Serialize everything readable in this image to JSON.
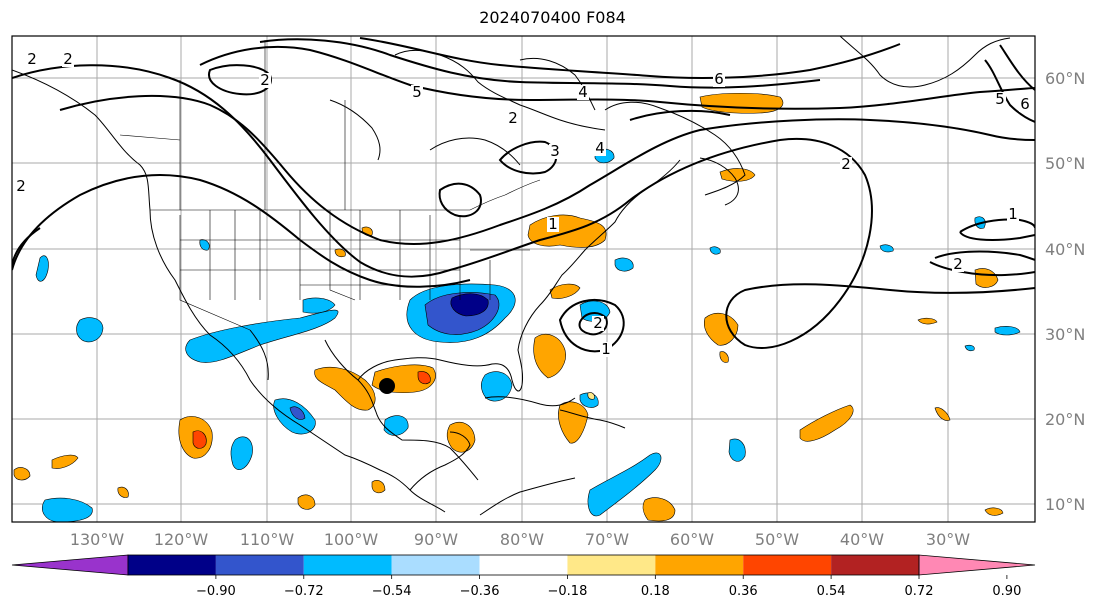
{
  "title": "2024070400 F084",
  "lon_labels": [
    "130°W",
    "120°W",
    "110°W",
    "100°W",
    "90°W",
    "80°W",
    "70°W",
    "60°W",
    "50°W",
    "40°W",
    "30°W"
  ],
  "lat_labels": [
    "60°N",
    "50°N",
    "40°N",
    "30°N",
    "20°N",
    "10°N"
  ],
  "contour_labels": [
    "2",
    "2",
    "2",
    "5",
    "4",
    "6",
    "2",
    "3",
    "4",
    "2",
    "1",
    "1",
    "1",
    "2",
    "2",
    "5",
    "6",
    "2"
  ],
  "colorbar": {
    "colors": [
      "#9933cc",
      "#000088",
      "#3355cc",
      "#00bbff",
      "#aaddff",
      "#ffffff",
      "#ffe888",
      "#ffa500",
      "#ff4500",
      "#b22222",
      "#ff88b4"
    ],
    "ticks": [
      "−0.90",
      "−0.72",
      "−0.54",
      "−0.36",
      "−0.18",
      "0.18",
      "0.36",
      "0.54",
      "0.72",
      "0.90"
    ]
  },
  "markers": [
    {
      "name": "storm-center-marker",
      "color": "#000000"
    }
  ]
}
